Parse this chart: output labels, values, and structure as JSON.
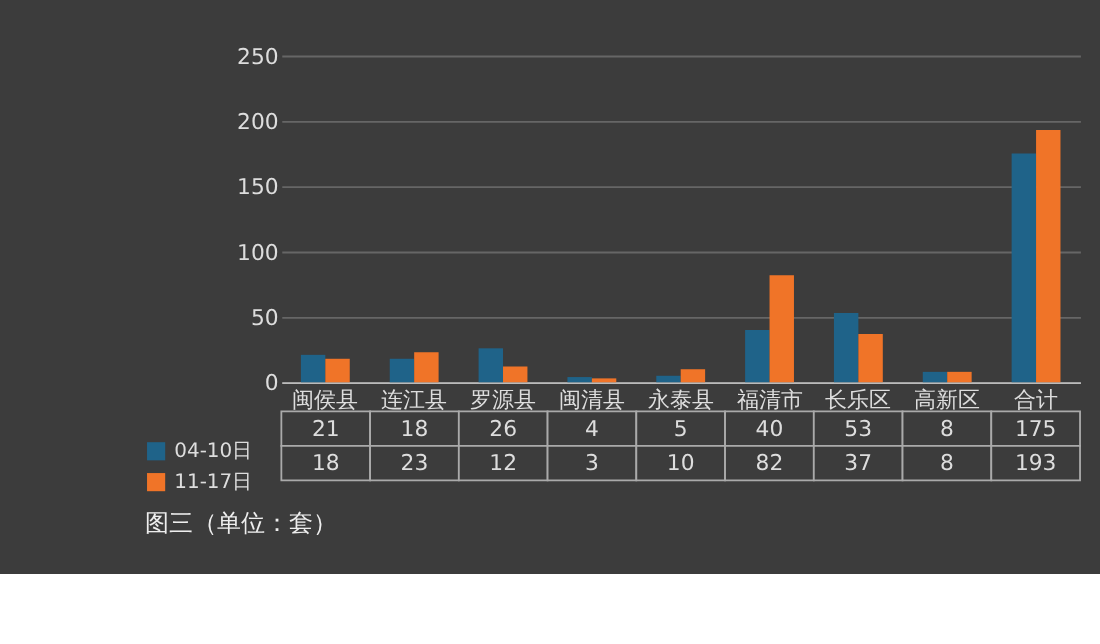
{
  "chart_data": {
    "type": "bar",
    "annotations": [
      "图三（单位：套）"
    ],
    "categories": [
      "闽侯县",
      "连江县",
      "罗源县",
      "闽清县",
      "永泰县",
      "福清市",
      "长乐区",
      "高新区",
      "合计"
    ],
    "series": [
      {
        "name": "04-10日",
        "color": "#1f6389",
        "values": [
          21,
          18,
          26,
          4,
          5,
          40,
          53,
          8,
          175
        ]
      },
      {
        "name": "11-17日",
        "color": "#f07428",
        "values": [
          18,
          23,
          12,
          3,
          10,
          82,
          37,
          8,
          193
        ]
      }
    ],
    "ylim": [
      0,
      250
    ],
    "yticks": [
      0,
      50,
      100,
      150,
      200,
      250
    ],
    "grid": "y",
    "legend": "bottom left",
    "data_labels": true
  }
}
